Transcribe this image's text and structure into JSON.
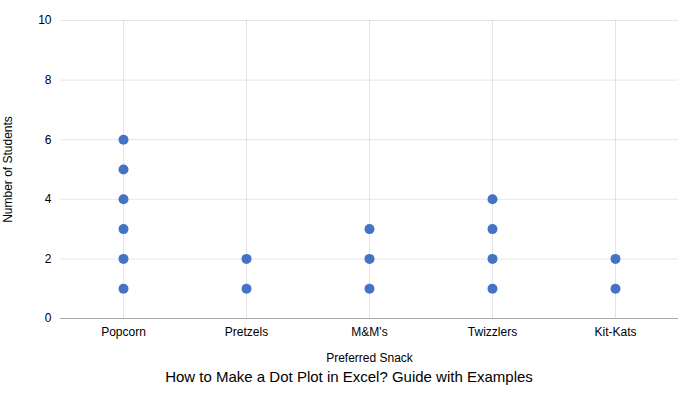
{
  "chart_data": {
    "type": "dot",
    "title": "How to Make a Dot Plot in Excel? Guide with Examples",
    "xlabel": "Preferred Snack",
    "ylabel": "Number of Students",
    "categories": [
      "Popcorn",
      "Pretzels",
      "M&M's",
      "Twizzlers",
      "Kit-Kats"
    ],
    "values": [
      [
        1,
        2,
        3,
        4,
        5,
        6
      ],
      [
        1,
        2
      ],
      [
        1,
        2,
        3
      ],
      [
        1,
        2,
        3,
        4
      ],
      [
        1,
        2
      ]
    ],
    "color": "#4472C4",
    "ylim": [
      0,
      10
    ],
    "yticks": [
      0,
      2,
      4,
      6,
      8,
      10
    ],
    "grid": true
  }
}
